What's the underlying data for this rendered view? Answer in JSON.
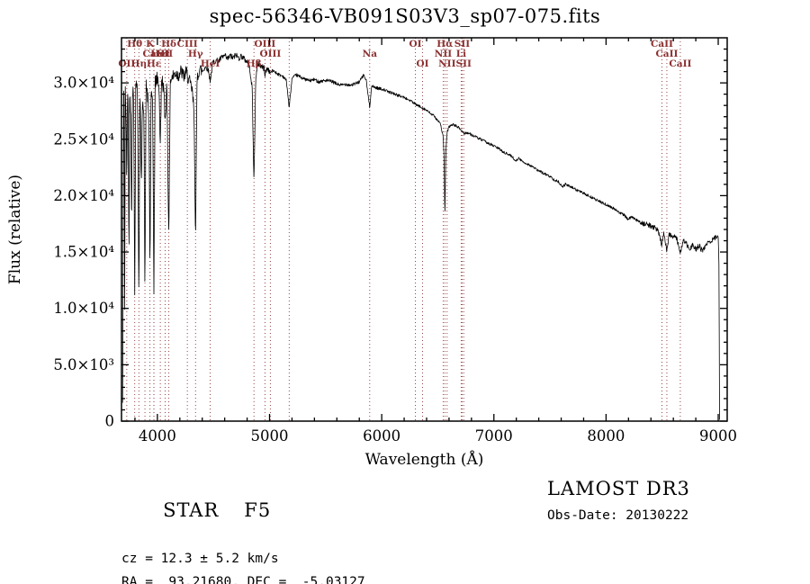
{
  "footer": {
    "star_class": "STAR",
    "star_type": "F5",
    "cz": "cz = 12.3 ± 5.2 km/s",
    "ra_dec": "RA =  93.21680, DEC =  -5.03127",
    "survey": "LAMOST DR3",
    "obs_date": "Obs-Date: 20130222"
  },
  "chart_data": {
    "type": "line",
    "title": "spec-56346-VB091S03V3_sp07-075.fits",
    "xlabel": "Wavelength (Å)",
    "ylabel": "Flux (relative)",
    "xlim": [
      3680,
      9080
    ],
    "ylim": [
      0,
      34000
    ],
    "grid": false,
    "x_major_ticks": [
      4000,
      5000,
      6000,
      7000,
      8000,
      9000
    ],
    "x_minor_step": 200,
    "y_major_ticks": [
      0,
      5000,
      10000,
      15000,
      20000,
      25000,
      30000
    ],
    "y_tick_labels": [
      "0",
      "5.0×10³",
      "1.0×10⁴",
      "1.5×10⁴",
      "2.0×10⁴",
      "2.5×10⁴",
      "3.0×10⁴"
    ],
    "y_minor_step": 1000,
    "line_color": "#000000",
    "noise": {
      "seed": 42,
      "regions": [
        [
          4400,
          650
        ],
        [
          5000,
          280
        ],
        [
          6000,
          150
        ],
        [
          8300,
          120
        ],
        [
          9100,
          230
        ]
      ]
    },
    "spectral_lines": {
      "color": "#8b3030",
      "lines": [
        {
          "wavelength": 3727,
          "label": "OII",
          "row": 3
        },
        {
          "wavelength": 3798,
          "label": "Hθ",
          "row": 1
        },
        {
          "wavelength": 3835,
          "label": "Hη",
          "row": 3
        },
        {
          "wavelength": 3889,
          "label": "",
          "row": 0
        },
        {
          "wavelength": 3934,
          "label": "K",
          "row": 1
        },
        {
          "wavelength": 3969,
          "label": "CaII",
          "row": 2
        },
        {
          "wavelength": 3969,
          "label": "Hε",
          "row": 3
        },
        {
          "wavelength": 4026,
          "label": "HeI",
          "row": 2
        },
        {
          "wavelength": 4069,
          "label": "SII",
          "row": 2
        },
        {
          "wavelength": 4102,
          "label": "Hδ",
          "row": 1
        },
        {
          "wavelength": 4267,
          "label": "CIII",
          "row": 1
        },
        {
          "wavelength": 4340,
          "label": "Hγ",
          "row": 2
        },
        {
          "wavelength": 4471,
          "label": "HeI",
          "row": 3
        },
        {
          "wavelength": 4861,
          "label": "Hβ",
          "row": 3
        },
        {
          "wavelength": 4959,
          "label": "OIII",
          "row": 1
        },
        {
          "wavelength": 5007,
          "label": "OIII",
          "row": 2
        },
        {
          "wavelength": 5175,
          "label": "",
          "row": 0
        },
        {
          "wavelength": 5893,
          "label": "Na",
          "row": 2
        },
        {
          "wavelength": 6300,
          "label": "OI",
          "row": 1
        },
        {
          "wavelength": 6364,
          "label": "OI",
          "row": 3
        },
        {
          "wavelength": 6548,
          "label": "NII",
          "row": 2
        },
        {
          "wavelength": 6563,
          "label": "Hα",
          "row": 1
        },
        {
          "wavelength": 6583,
          "label": "NII",
          "row": 3
        },
        {
          "wavelength": 6708,
          "label": "Li",
          "row": 2
        },
        {
          "wavelength": 6717,
          "label": "SII",
          "row": 1
        },
        {
          "wavelength": 6731,
          "label": "SII",
          "row": 3
        },
        {
          "wavelength": 8498,
          "label": "CaII",
          "row": 1
        },
        {
          "wavelength": 8542,
          "label": "CaII",
          "row": 2
        },
        {
          "wavelength": 8662,
          "label": "CaII",
          "row": 3
        }
      ]
    },
    "series": [
      {
        "name": "spectrum",
        "points": [
          [
            3690,
            1500
          ],
          [
            3694,
            9500
          ],
          [
            3697,
            28800
          ],
          [
            3703,
            29600
          ],
          [
            3708,
            10200
          ],
          [
            3714,
            29200
          ],
          [
            3721,
            27000
          ],
          [
            3727,
            20500
          ],
          [
            3733,
            29400
          ],
          [
            3740,
            28000
          ],
          [
            3746,
            13500
          ],
          [
            3753,
            29200
          ],
          [
            3762,
            27500
          ],
          [
            3770,
            16500
          ],
          [
            3777,
            29400
          ],
          [
            3788,
            29000
          ],
          [
            3798,
            11800
          ],
          [
            3807,
            29800
          ],
          [
            3820,
            30200
          ],
          [
            3827,
            24000
          ],
          [
            3835,
            10500
          ],
          [
            3844,
            29600
          ],
          [
            3858,
            21000
          ],
          [
            3868,
            29200
          ],
          [
            3880,
            27000
          ],
          [
            3889,
            11200
          ],
          [
            3899,
            30100
          ],
          [
            3915,
            28500
          ],
          [
            3926,
            25500
          ],
          [
            3934,
            12800
          ],
          [
            3943,
            29300
          ],
          [
            3958,
            27800
          ],
          [
            3969,
            11800
          ],
          [
            3980,
            30100
          ],
          [
            4000,
            30400
          ],
          [
            4014,
            29800
          ],
          [
            4026,
            24500
          ],
          [
            4038,
            30400
          ],
          [
            4055,
            29600
          ],
          [
            4069,
            26500
          ],
          [
            4085,
            30100
          ],
          [
            4102,
            15500
          ],
          [
            4114,
            30200
          ],
          [
            4135,
            30500
          ],
          [
            4160,
            30900
          ],
          [
            4185,
            30700
          ],
          [
            4210,
            31000
          ],
          [
            4235,
            30600
          ],
          [
            4260,
            30900
          ],
          [
            4285,
            30100
          ],
          [
            4310,
            29300
          ],
          [
            4326,
            27500
          ],
          [
            4340,
            16500
          ],
          [
            4354,
            30400
          ],
          [
            4375,
            31300
          ],
          [
            4400,
            31000
          ],
          [
            4425,
            31400
          ],
          [
            4450,
            31300
          ],
          [
            4471,
            30200
          ],
          [
            4495,
            31800
          ],
          [
            4520,
            32000
          ],
          [
            4545,
            31900
          ],
          [
            4570,
            32200
          ],
          [
            4600,
            32400
          ],
          [
            4625,
            32100
          ],
          [
            4650,
            32400
          ],
          [
            4675,
            32200
          ],
          [
            4700,
            32500
          ],
          [
            4725,
            32200
          ],
          [
            4750,
            32400
          ],
          [
            4775,
            32100
          ],
          [
            4800,
            31900
          ],
          [
            4825,
            31200
          ],
          [
            4845,
            29500
          ],
          [
            4861,
            21000
          ],
          [
            4877,
            30600
          ],
          [
            4900,
            31700
          ],
          [
            4925,
            31500
          ],
          [
            4950,
            31300
          ],
          [
            4959,
            30800
          ],
          [
            4980,
            31300
          ],
          [
            5007,
            30900
          ],
          [
            5030,
            31100
          ],
          [
            5060,
            30900
          ],
          [
            5090,
            30700
          ],
          [
            5120,
            30600
          ],
          [
            5150,
            30200
          ],
          [
            5175,
            27800
          ],
          [
            5200,
            30400
          ],
          [
            5240,
            30700
          ],
          [
            5280,
            30500
          ],
          [
            5320,
            30300
          ],
          [
            5360,
            30200
          ],
          [
            5400,
            30300
          ],
          [
            5440,
            30100
          ],
          [
            5480,
            30200
          ],
          [
            5520,
            30200
          ],
          [
            5560,
            30100
          ],
          [
            5600,
            29900
          ],
          [
            5640,
            29800
          ],
          [
            5680,
            29900
          ],
          [
            5720,
            29800
          ],
          [
            5760,
            29900
          ],
          [
            5800,
            30100
          ],
          [
            5840,
            30700
          ],
          [
            5862,
            30200
          ],
          [
            5877,
            29000
          ],
          [
            5893,
            27800
          ],
          [
            5908,
            29700
          ],
          [
            5940,
            29600
          ],
          [
            5980,
            29500
          ],
          [
            6020,
            29400
          ],
          [
            6060,
            29200
          ],
          [
            6100,
            29100
          ],
          [
            6140,
            28900
          ],
          [
            6180,
            28800
          ],
          [
            6220,
            28600
          ],
          [
            6260,
            28400
          ],
          [
            6300,
            28100
          ],
          [
            6340,
            27900
          ],
          [
            6380,
            27700
          ],
          [
            6420,
            27400
          ],
          [
            6460,
            27100
          ],
          [
            6500,
            26700
          ],
          [
            6525,
            26300
          ],
          [
            6548,
            25200
          ],
          [
            6556,
            23500
          ],
          [
            6563,
            17800
          ],
          [
            6571,
            23800
          ],
          [
            6583,
            25600
          ],
          [
            6600,
            26100
          ],
          [
            6630,
            26300
          ],
          [
            6660,
            26200
          ],
          [
            6690,
            26000
          ],
          [
            6708,
            25800
          ],
          [
            6720,
            25700
          ],
          [
            6731,
            25500
          ],
          [
            6760,
            25600
          ],
          [
            6800,
            25400
          ],
          [
            6840,
            25200
          ],
          [
            6880,
            25000
          ],
          [
            6920,
            24800
          ],
          [
            6960,
            24600
          ],
          [
            7000,
            24400
          ],
          [
            7040,
            24200
          ],
          [
            7080,
            23900
          ],
          [
            7120,
            23700
          ],
          [
            7160,
            23500
          ],
          [
            7190,
            23100
          ],
          [
            7220,
            23300
          ],
          [
            7260,
            23000
          ],
          [
            7300,
            22800
          ],
          [
            7340,
            22600
          ],
          [
            7380,
            22300
          ],
          [
            7420,
            22100
          ],
          [
            7460,
            21900
          ],
          [
            7500,
            21700
          ],
          [
            7540,
            21400
          ],
          [
            7580,
            21200
          ],
          [
            7610,
            20800
          ],
          [
            7640,
            21000
          ],
          [
            7680,
            20800
          ],
          [
            7720,
            20600
          ],
          [
            7760,
            20400
          ],
          [
            7800,
            20200
          ],
          [
            7840,
            20000
          ],
          [
            7880,
            19800
          ],
          [
            7920,
            19600
          ],
          [
            7960,
            19400
          ],
          [
            8000,
            19200
          ],
          [
            8040,
            19000
          ],
          [
            8080,
            18800
          ],
          [
            8120,
            18500
          ],
          [
            8160,
            18300
          ],
          [
            8195,
            17900
          ],
          [
            8225,
            18100
          ],
          [
            8260,
            17900
          ],
          [
            8300,
            17700
          ],
          [
            8340,
            17500
          ],
          [
            8380,
            17400
          ],
          [
            8420,
            17200
          ],
          [
            8460,
            17000
          ],
          [
            8498,
            15600
          ],
          [
            8515,
            16800
          ],
          [
            8542,
            15100
          ],
          [
            8562,
            16600
          ],
          [
            8595,
            16400
          ],
          [
            8630,
            16200
          ],
          [
            8662,
            14900
          ],
          [
            8688,
            16000
          ],
          [
            8715,
            15800
          ],
          [
            8745,
            15100
          ],
          [
            8770,
            15700
          ],
          [
            8800,
            15200
          ],
          [
            8830,
            15600
          ],
          [
            8860,
            15000
          ],
          [
            8890,
            15700
          ],
          [
            8920,
            15900
          ],
          [
            8950,
            16100
          ],
          [
            8980,
            16300
          ],
          [
            9000,
            16400
          ],
          [
            9006,
            14000
          ],
          [
            9012,
            300
          ]
        ]
      }
    ]
  }
}
